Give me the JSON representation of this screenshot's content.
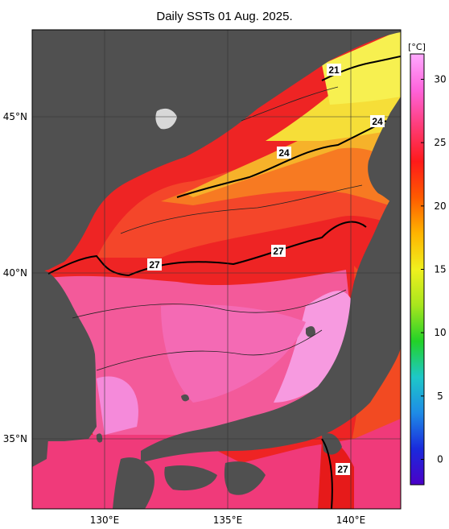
{
  "title": "Daily SSTs 01 Aug. 2025.",
  "colorbar": {
    "unit": "[°C]",
    "ticks": [
      30,
      25,
      20,
      15,
      10,
      5,
      0
    ],
    "range": [
      -2,
      32
    ],
    "stops": [
      "#4b00c8",
      "#1a2adc",
      "#1e8ce6",
      "#1ec8c8",
      "#22d228",
      "#a8e61e",
      "#f0f01e",
      "#ffb400",
      "#ff5a00",
      "#ff1a1a",
      "#ff3c78",
      "#ff64dc",
      "#ffaaff"
    ]
  },
  "lat_labels": [
    "45°N",
    "40°N",
    "35°N"
  ],
  "lon_labels": [
    "130°E",
    "135°E",
    "140°E"
  ],
  "contour_labels": [
    "21",
    "24",
    "24",
    "27",
    "27",
    "27"
  ],
  "colors": {
    "land": "#505050",
    "warm_red": "#f01e1e",
    "orange": "#f56a1a",
    "yellow": "#f6e23a",
    "pink": "#f08cd8",
    "deep_red": "#e81818"
  }
}
